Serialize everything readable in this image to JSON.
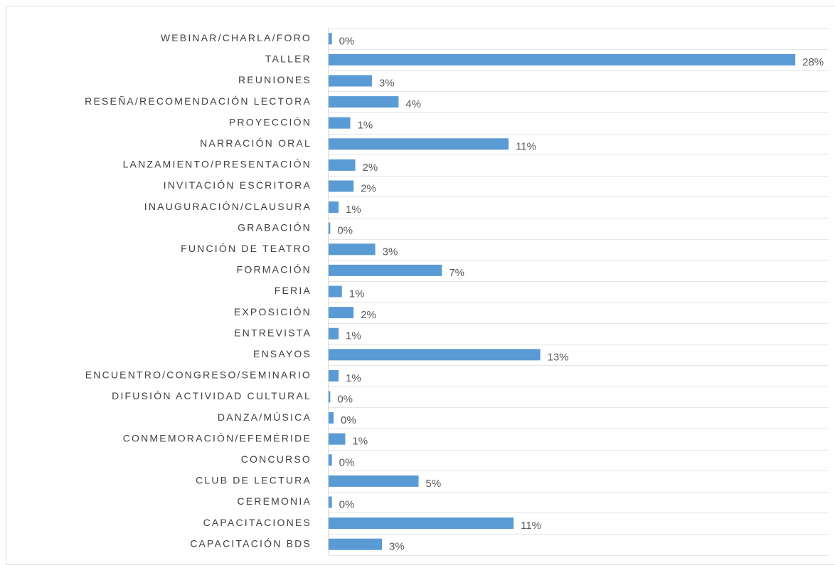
{
  "chart_data": {
    "type": "bar",
    "orientation": "horizontal",
    "categories": [
      "WEBINAR/CHARLA/FORO",
      "TALLER",
      "REUNIONES",
      "RESEÑA/RECOMENDACIÓN LECTORA",
      "PROYECCIÓN",
      "NARRACIÓN ORAL",
      "LANZAMIENTO/PRESENTACIÓN",
      "INVITACIÓN ESCRITORA",
      "INAUGURACIÓN/CLAUSURA",
      "GRABACIÓN",
      "FUNCIÓN DE TEATRO",
      "FORMACIÓN",
      "FERIA",
      "EXPOSICIÓN",
      "ENTREVISTA",
      "ENSAYOS",
      "ENCUENTRO/CONGRESO/SEMINARIO",
      "DIFUSIÓN ACTIVIDAD CULTURAL",
      "DANZA/MÚSICA",
      "CONMEMORACIÓN/EFEMÉRIDE",
      "CONCURSO",
      "CLUB DE LECTURA",
      "CEREMONIA",
      "CAPACITACIONES",
      "CAPACITACIÓN BDS"
    ],
    "values": [
      0.2,
      28.0,
      2.6,
      4.2,
      1.3,
      10.8,
      1.6,
      1.5,
      0.6,
      0.1,
      2.8,
      6.8,
      0.8,
      1.5,
      0.6,
      12.7,
      0.6,
      0.1,
      0.3,
      1.0,
      0.2,
      5.4,
      0.2,
      11.1,
      3.2
    ],
    "value_labels": [
      "0%",
      "28%",
      "3%",
      "4%",
      "1%",
      "11%",
      "2%",
      "2%",
      "1%",
      "0%",
      "3%",
      "7%",
      "1%",
      "2%",
      "1%",
      "13%",
      "1%",
      "0%",
      "0%",
      "1%",
      "0%",
      "5%",
      "0%",
      "11%",
      "3%"
    ],
    "color": "#5b9bd5",
    "xlim": [
      0,
      30
    ]
  }
}
